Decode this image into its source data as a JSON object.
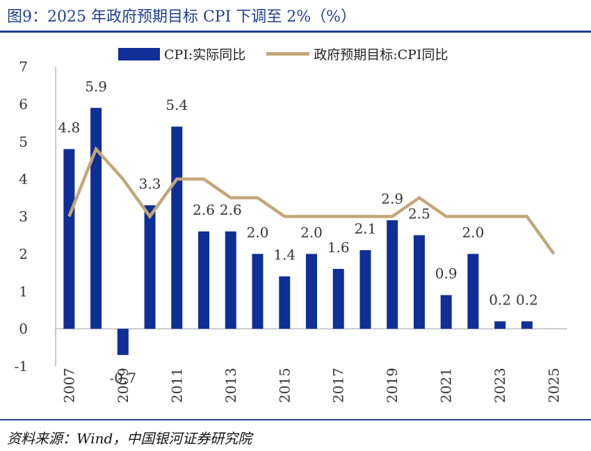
{
  "figure": {
    "title": "图9：2025 年政府预期目标 CPI 下调至 2%（%）",
    "source": "资料来源：Wind，中国银河证券研究院"
  },
  "colors": {
    "bar": "#0f2e96",
    "line": "#c4a678",
    "accent": "#1f3f8f"
  },
  "chart_data": {
    "type": "bar",
    "categories": [
      "2007",
      "2008",
      "2009",
      "2010",
      "2011",
      "2012",
      "2013",
      "2014",
      "2015",
      "2016",
      "2017",
      "2018",
      "2019",
      "2020",
      "2021",
      "2022",
      "2023",
      "2024",
      "2025"
    ],
    "x_tick_labels": [
      "2007",
      "2009",
      "2011",
      "2013",
      "2015",
      "2017",
      "2019",
      "2021",
      "2023",
      "2025"
    ],
    "ylim": [
      -1,
      7
    ],
    "y_ticks": [
      "-1",
      "0",
      "1",
      "2",
      "3",
      "4",
      "5",
      "6",
      "7"
    ],
    "grid": false,
    "legend_position": "top",
    "series": [
      {
        "name": "CPI:实际同比",
        "type": "bar",
        "values": [
          4.8,
          5.9,
          -0.7,
          3.3,
          5.4,
          2.6,
          2.6,
          2.0,
          1.4,
          2.0,
          1.6,
          2.1,
          2.9,
          2.5,
          0.9,
          2.0,
          0.2,
          0.2,
          null
        ],
        "labels": [
          "4.8",
          "5.9",
          "-0.7",
          "3.3",
          "5.4",
          "2.6",
          "2.6",
          "2.0",
          "1.4",
          "2.0",
          "1.6",
          "2.1",
          "2.9",
          "2.5",
          "0.9",
          "2.0",
          "0.2",
          "0.2",
          ""
        ]
      },
      {
        "name": "政府预期目标:CPI同比",
        "type": "line",
        "values": [
          3,
          4.8,
          4,
          3,
          4,
          4,
          3.5,
          3.5,
          3,
          3,
          3,
          3,
          3,
          3.5,
          3,
          3,
          3,
          3,
          2
        ]
      }
    ]
  }
}
